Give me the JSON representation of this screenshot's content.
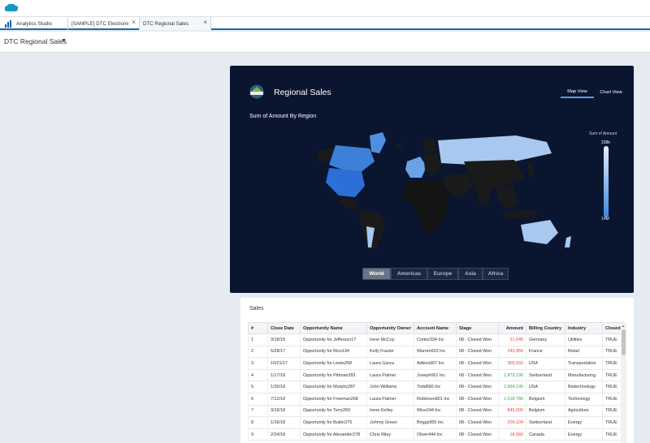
{
  "tabs": [
    {
      "label": "Analytics Studio",
      "closable": false
    },
    {
      "label": "[SAMPLE] DTC Electronics S...",
      "closable": true
    },
    {
      "label": "DTC Regional Sales",
      "closable": true
    }
  ],
  "header": {
    "title": "DTC Regional Sales"
  },
  "dashboard": {
    "title": "Regional Sales",
    "logo_icon": "dtc-logo-icon",
    "view_tabs": [
      "Map View",
      "Chart View"
    ],
    "map_subtitle": "Sum of Amount By Region",
    "legend": {
      "title": "Sum of Amount",
      "max": "238k",
      "min": "14M"
    },
    "regions": [
      "World",
      "Americas",
      "Europe",
      "Asia",
      "Africa"
    ],
    "colors": {
      "panel": "#0a1530",
      "dark_land": "#111111",
      "mid_blue": "#3d7fd9",
      "light_blue": "#a9c8ef"
    }
  },
  "sales": {
    "title": "Sales",
    "columns": [
      "#",
      "Close Date",
      "Opportunity Name",
      "Opportunity Owner",
      "Account Name",
      "Stage",
      "Amount",
      "Billing Country",
      "Industry",
      "Closed"
    ],
    "rows": [
      [
        "1",
        "3/18/18",
        "Opportunity for Jefferson17",
        "Irene McCoy",
        "Cortez334 Inc",
        "08 - Closed Won",
        "21,640",
        "Germany",
        "Utilities",
        "TRUE"
      ],
      [
        "2",
        "5/28/17",
        "Opportunity for Rice134",
        "Kelly Frazier",
        "Warren653 Inc",
        "08 - Closed Won",
        "243,455",
        "France",
        "Retail",
        "TRUE"
      ],
      [
        "3",
        "10/21/17",
        "Opportunity for Lewis258",
        "Laura Garza",
        "Adkins907 Inc",
        "08 - Closed Won",
        "309,933",
        "USA",
        "Transportation",
        "TRUE"
      ],
      [
        "4",
        "1/17/18",
        "Opportunity for Pittman283",
        "Laura Palmer",
        "Joseph061 Inc",
        "08 - Closed Won",
        "1,879,190",
        "Switzerland",
        "Manufacturing",
        "TRUE"
      ],
      [
        "5",
        "1/30/18",
        "Opportunity for Murphy287",
        "John Williams",
        "Todd690 Inc",
        "08 - Closed Won",
        "2,664,105",
        "USA",
        "Biotechnology",
        "TRUE"
      ],
      [
        "6",
        "7/12/18",
        "Opportunity for Freeman268",
        "Laura Palmer",
        "Robinson801 Inc",
        "08 - Closed Won",
        "1,518,780",
        "Belgium",
        "Technology",
        "TRUE"
      ],
      [
        "7",
        "3/16/18",
        "Opportunity for Terry269",
        "Irene Kelley",
        "Wise244 Inc",
        "08 - Closed Won",
        "846,000",
        "Belgium",
        "Agriculture",
        "TRUE"
      ],
      [
        "8",
        "1/16/18",
        "Opportunity for Butler275",
        "Johnny Green",
        "Briggs955 Inc",
        "08 - Closed Won",
        "209,104",
        "Switzerland",
        "Energy",
        "TRUE"
      ],
      [
        "9",
        "2/24/18",
        "Opportunity for Alexander278",
        "Chris Riley",
        "Oliver444 Inc",
        "08 - Closed Won",
        "18,960",
        "Canada",
        "Energy",
        "TRUE"
      ]
    ],
    "amount_colors": [
      "red",
      "red",
      "red",
      "green",
      "green",
      "green",
      "red",
      "red",
      "red"
    ]
  }
}
